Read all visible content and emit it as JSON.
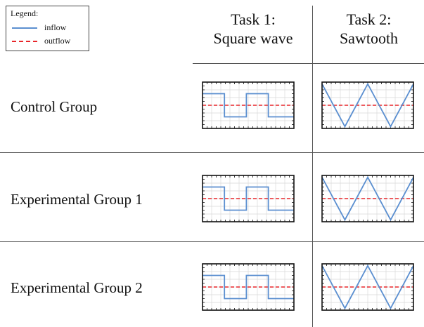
{
  "legend": {
    "title": "Legend:",
    "items": [
      {
        "label": "inflow",
        "color": "#5b8fd0",
        "style": "solid"
      },
      {
        "label": "outflow",
        "color": "#e8262a",
        "style": "dashed"
      }
    ]
  },
  "columns": [
    {
      "line1": "Task 1:",
      "line2": "Square wave",
      "waveform": "square"
    },
    {
      "line1": "Task 2:",
      "line2": "Sawtooth",
      "waveform": "sawtooth"
    }
  ],
  "rows": [
    {
      "label": "Control Group"
    },
    {
      "label": "Experimental Group 1"
    },
    {
      "label": "Experimental Group 2"
    }
  ],
  "colors": {
    "inflow": "#5b8fd0",
    "outflow": "#e8262a",
    "frame": "#111111",
    "grid": "#d9d9d9",
    "rule": "#555555"
  }
}
